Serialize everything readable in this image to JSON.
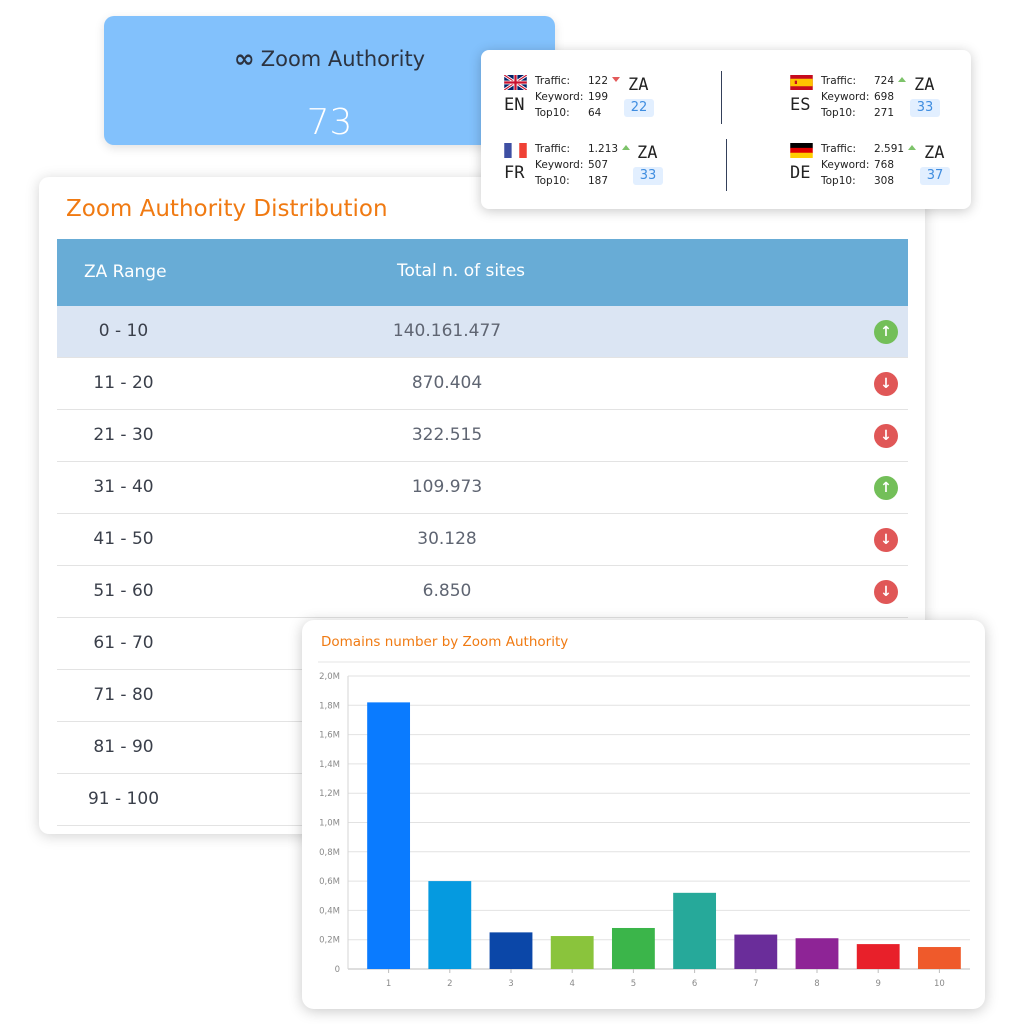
{
  "za_card": {
    "icon": "infinity-icon",
    "title": "Zoom Authority",
    "value": "73"
  },
  "countries": [
    {
      "code": "EN",
      "flag": "uk-flag-icon",
      "traffic_label": "Traffic:",
      "keyword_label": "Keyword:",
      "top10_label": "Top10:",
      "traffic": "122",
      "traffic_trend": "down",
      "keyword": "199",
      "top10": "64",
      "za_label": "ZA",
      "za": "22"
    },
    {
      "code": "ES",
      "flag": "spain-flag-icon",
      "traffic_label": "Traffic:",
      "keyword_label": "Keyword:",
      "top10_label": "Top10:",
      "traffic": "724",
      "traffic_trend": "up",
      "keyword": "698",
      "top10": "271",
      "za_label": "ZA",
      "za": "33"
    },
    {
      "code": "FR",
      "flag": "france-flag-icon",
      "traffic_label": "Traffic:",
      "keyword_label": "Keyword:",
      "top10_label": "Top10:",
      "traffic": "1.213",
      "traffic_trend": "up",
      "keyword": "507",
      "top10": "187",
      "za_label": "ZA",
      "za": "33"
    },
    {
      "code": "DE",
      "flag": "germany-flag-icon",
      "traffic_label": "Traffic:",
      "keyword_label": "Keyword:",
      "top10_label": "Top10:",
      "traffic": "2.591",
      "traffic_trend": "up",
      "keyword": "768",
      "top10": "308",
      "za_label": "ZA",
      "za": "37"
    }
  ],
  "distribution": {
    "title": "Zoom Authority Distribution",
    "header": {
      "range": "ZA Range",
      "total": "Total n. of sites"
    },
    "rows": [
      {
        "range": "0 - 10",
        "total": "140.161.477",
        "trend": "up"
      },
      {
        "range": "11 - 20",
        "total": "870.404",
        "trend": "down"
      },
      {
        "range": "21 - 30",
        "total": "322.515",
        "trend": "down"
      },
      {
        "range": "31 - 40",
        "total": "109.973",
        "trend": "up"
      },
      {
        "range": "41 - 50",
        "total": "30.128",
        "trend": "down"
      },
      {
        "range": "51 - 60",
        "total": "6.850",
        "trend": "down"
      },
      {
        "range": "61 - 70",
        "total": "",
        "trend": ""
      },
      {
        "range": "71 - 80",
        "total": "",
        "trend": ""
      },
      {
        "range": "81 - 90",
        "total": "",
        "trend": ""
      },
      {
        "range": "91 - 100",
        "total": "",
        "trend": ""
      }
    ]
  },
  "chart": {
    "title": "Domains number by Zoom Authority"
  },
  "chart_data": {
    "type": "bar",
    "title": "Domains number by Zoom Authority",
    "xlabel": "",
    "ylabel": "",
    "categories": [
      "1",
      "2",
      "3",
      "4",
      "5",
      "6",
      "7",
      "8",
      "9",
      "10"
    ],
    "values": [
      1.82,
      0.6,
      0.25,
      0.225,
      0.28,
      0.52,
      0.235,
      0.21,
      0.17,
      0.15
    ],
    "unit": "M",
    "ylim": [
      0,
      2.0
    ],
    "yticks": [
      "0",
      "0,2M",
      "0,4M",
      "0,6M",
      "0,8M",
      "1,0M",
      "1,2M",
      "1,4M",
      "1,6M",
      "1,8M",
      "2,0M"
    ],
    "colors": [
      "#0a7bff",
      "#059ae0",
      "#0b47a8",
      "#8ac43c",
      "#3bb54a",
      "#26a99a",
      "#6a2d9a",
      "#8e2496",
      "#e8202a",
      "#ef5a2b"
    ],
    "grid": true,
    "legend": "none"
  },
  "colors": {
    "accent_orange": "#f07a12",
    "header_blue": "#68acd6",
    "card_blue": "#82c1fc",
    "up_green": "#73bf59",
    "down_red": "#e05757"
  }
}
